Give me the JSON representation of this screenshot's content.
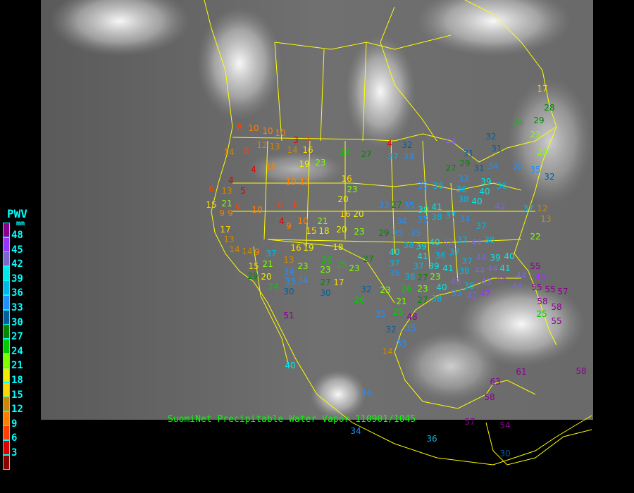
{
  "caption": "SuomiNet Precipitable Water Vapor 110901/1045",
  "legend": {
    "title": "PWV",
    "unit": "mm",
    "labels": [
      "48",
      "45",
      "42",
      "39",
      "36",
      "33",
      "30",
      "27",
      "24",
      "21",
      "18",
      "15",
      "12",
      "9",
      "6",
      "3"
    ],
    "colors": [
      "#8b0090",
      "#9933ff",
      "#7b68cc",
      "#00e8e8",
      "#00b8e6",
      "#1e90ff",
      "#005f9f",
      "#008800",
      "#00cc00",
      "#7fff00",
      "#eeee00",
      "#ffd700",
      "#cc8800",
      "#ff8000",
      "#ff4000",
      "#dd0000",
      "#8b0000"
    ]
  },
  "map_colors": {
    "background": "#000000",
    "boundaries": "#ffff00",
    "imagery": "#6a6a6a"
  },
  "stations": [
    8,
    10,
    10,
    10,
    3,
    7,
    14,
    8,
    12,
    13,
    14,
    16,
    4,
    10,
    10,
    11,
    19,
    23,
    24,
    27,
    4,
    32,
    37,
    33,
    6,
    13,
    5,
    4,
    15,
    21,
    9,
    9,
    6,
    10,
    6,
    6,
    4,
    9,
    10,
    21,
    15,
    18,
    20,
    16,
    20,
    23,
    16,
    23,
    20,
    17,
    13,
    14,
    14,
    9,
    37,
    16,
    19,
    18,
    13,
    21,
    23,
    23,
    26,
    25,
    23,
    27,
    15,
    29,
    20,
    24,
    34,
    33,
    34,
    27,
    17,
    30,
    30,
    32,
    23,
    26,
    23,
    21,
    26,
    35,
    25,
    48,
    32,
    35,
    14,
    33,
    51,
    40,
    34,
    34,
    36,
    57,
    54,
    30,
    58,
    63,
    61,
    58,
    33,
    27,
    35,
    39,
    41,
    35,
    36,
    36,
    38,
    40,
    40,
    36,
    42,
    34,
    35,
    38,
    37,
    34,
    37,
    29,
    35,
    35,
    40,
    42,
    37,
    44,
    38,
    38,
    39,
    40,
    41,
    36,
    37,
    37,
    44,
    39,
    37,
    37,
    39,
    41,
    38,
    44,
    44,
    41,
    40,
    35,
    38,
    27,
    23,
    40,
    43,
    35,
    36,
    43,
    45,
    44,
    55,
    46,
    27,
    38,
    42,
    55,
    55,
    57,
    58,
    58,
    55,
    25,
    44,
    47,
    27,
    29,
    31,
    34,
    31,
    44,
    32,
    24,
    29,
    23,
    23,
    35,
    32,
    35,
    37,
    12,
    13,
    22,
    17,
    28,
    31,
    33,
    39
  ]
}
